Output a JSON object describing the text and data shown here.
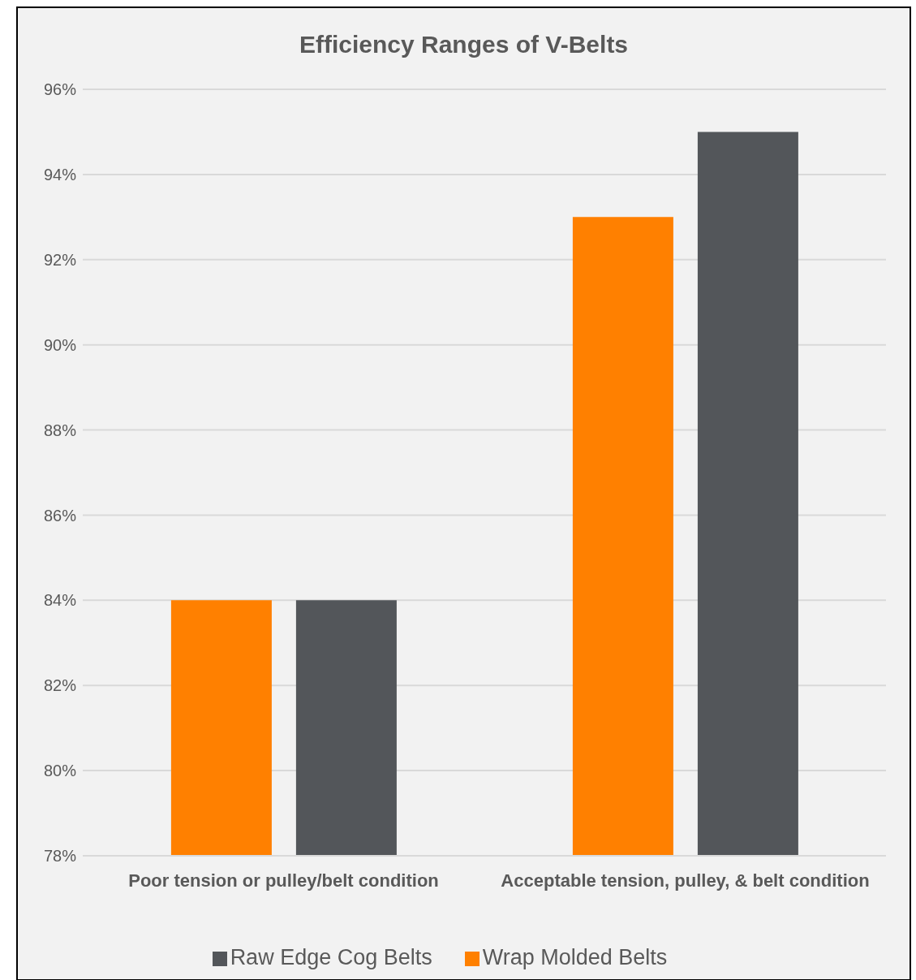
{
  "chart_data": {
    "type": "bar",
    "title": "Efficiency Ranges of V-Belts",
    "categories": [
      "Poor tension or pulley/belt condition",
      "Acceptable tension, pulley, & belt condition"
    ],
    "series": [
      {
        "name": "Wrap Molded Belts",
        "color": "#ff8000",
        "values": [
          84,
          93
        ]
      },
      {
        "name": "Raw Edge Cog Belts",
        "color": "#53565a",
        "values": [
          84,
          95
        ]
      }
    ],
    "ylim": [
      78,
      96
    ],
    "yticks": [
      {
        "value": 78,
        "label": "78%"
      },
      {
        "value": 80,
        "label": "80%"
      },
      {
        "value": 82,
        "label": "82%"
      },
      {
        "value": 84,
        "label": "84%"
      },
      {
        "value": 86,
        "label": "86%"
      },
      {
        "value": 88,
        "label": "88%"
      },
      {
        "value": 90,
        "label": "90%"
      },
      {
        "value": 92,
        "label": "92%"
      },
      {
        "value": 94,
        "label": "94%"
      },
      {
        "value": 96,
        "label": "96%"
      }
    ],
    "grid": "y",
    "legend": "bottom"
  }
}
